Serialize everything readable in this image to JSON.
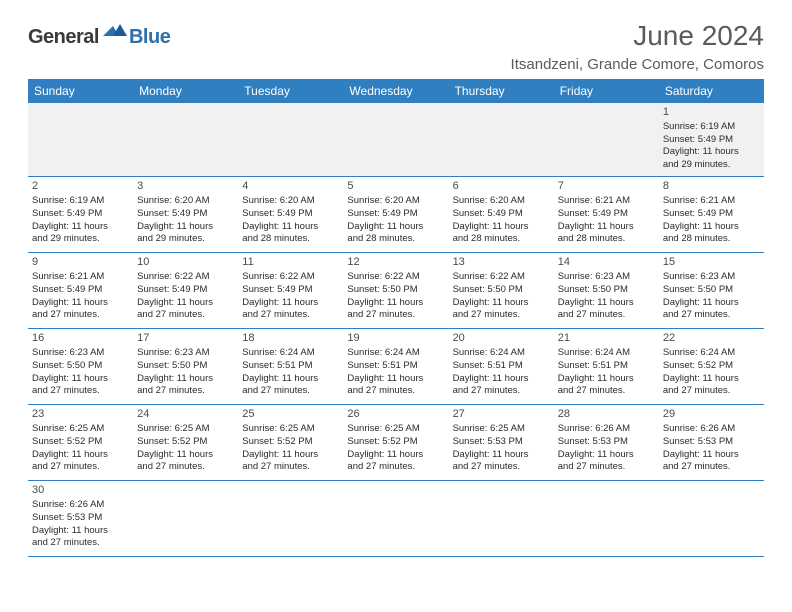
{
  "logo": {
    "part1": "General",
    "part2": "Blue"
  },
  "title": "June 2024",
  "location": "Itsandzeni, Grande Comore, Comoros",
  "theme": {
    "header_bg": "#2f7fc1",
    "header_fg": "#ffffff",
    "row0_bg": "#f1f1f1",
    "rule_color": "#2f7fc1",
    "page_bg": "#ffffff",
    "text_color": "#2b2b2b",
    "title_color": "#5b5b5b",
    "logo_gray": "#3a3a3a",
    "logo_blue": "#2f6fab"
  },
  "columns": [
    "Sunday",
    "Monday",
    "Tuesday",
    "Wednesday",
    "Thursday",
    "Friday",
    "Saturday"
  ],
  "weeks": [
    [
      null,
      null,
      null,
      null,
      null,
      null,
      {
        "n": "1",
        "sr": "Sunrise: 6:19 AM",
        "ss": "Sunset: 5:49 PM",
        "d1": "Daylight: 11 hours",
        "d2": "and 29 minutes."
      }
    ],
    [
      {
        "n": "2",
        "sr": "Sunrise: 6:19 AM",
        "ss": "Sunset: 5:49 PM",
        "d1": "Daylight: 11 hours",
        "d2": "and 29 minutes."
      },
      {
        "n": "3",
        "sr": "Sunrise: 6:20 AM",
        "ss": "Sunset: 5:49 PM",
        "d1": "Daylight: 11 hours",
        "d2": "and 29 minutes."
      },
      {
        "n": "4",
        "sr": "Sunrise: 6:20 AM",
        "ss": "Sunset: 5:49 PM",
        "d1": "Daylight: 11 hours",
        "d2": "and 28 minutes."
      },
      {
        "n": "5",
        "sr": "Sunrise: 6:20 AM",
        "ss": "Sunset: 5:49 PM",
        "d1": "Daylight: 11 hours",
        "d2": "and 28 minutes."
      },
      {
        "n": "6",
        "sr": "Sunrise: 6:20 AM",
        "ss": "Sunset: 5:49 PM",
        "d1": "Daylight: 11 hours",
        "d2": "and 28 minutes."
      },
      {
        "n": "7",
        "sr": "Sunrise: 6:21 AM",
        "ss": "Sunset: 5:49 PM",
        "d1": "Daylight: 11 hours",
        "d2": "and 28 minutes."
      },
      {
        "n": "8",
        "sr": "Sunrise: 6:21 AM",
        "ss": "Sunset: 5:49 PM",
        "d1": "Daylight: 11 hours",
        "d2": "and 28 minutes."
      }
    ],
    [
      {
        "n": "9",
        "sr": "Sunrise: 6:21 AM",
        "ss": "Sunset: 5:49 PM",
        "d1": "Daylight: 11 hours",
        "d2": "and 27 minutes."
      },
      {
        "n": "10",
        "sr": "Sunrise: 6:22 AM",
        "ss": "Sunset: 5:49 PM",
        "d1": "Daylight: 11 hours",
        "d2": "and 27 minutes."
      },
      {
        "n": "11",
        "sr": "Sunrise: 6:22 AM",
        "ss": "Sunset: 5:49 PM",
        "d1": "Daylight: 11 hours",
        "d2": "and 27 minutes."
      },
      {
        "n": "12",
        "sr": "Sunrise: 6:22 AM",
        "ss": "Sunset: 5:50 PM",
        "d1": "Daylight: 11 hours",
        "d2": "and 27 minutes."
      },
      {
        "n": "13",
        "sr": "Sunrise: 6:22 AM",
        "ss": "Sunset: 5:50 PM",
        "d1": "Daylight: 11 hours",
        "d2": "and 27 minutes."
      },
      {
        "n": "14",
        "sr": "Sunrise: 6:23 AM",
        "ss": "Sunset: 5:50 PM",
        "d1": "Daylight: 11 hours",
        "d2": "and 27 minutes."
      },
      {
        "n": "15",
        "sr": "Sunrise: 6:23 AM",
        "ss": "Sunset: 5:50 PM",
        "d1": "Daylight: 11 hours",
        "d2": "and 27 minutes."
      }
    ],
    [
      {
        "n": "16",
        "sr": "Sunrise: 6:23 AM",
        "ss": "Sunset: 5:50 PM",
        "d1": "Daylight: 11 hours",
        "d2": "and 27 minutes."
      },
      {
        "n": "17",
        "sr": "Sunrise: 6:23 AM",
        "ss": "Sunset: 5:50 PM",
        "d1": "Daylight: 11 hours",
        "d2": "and 27 minutes."
      },
      {
        "n": "18",
        "sr": "Sunrise: 6:24 AM",
        "ss": "Sunset: 5:51 PM",
        "d1": "Daylight: 11 hours",
        "d2": "and 27 minutes."
      },
      {
        "n": "19",
        "sr": "Sunrise: 6:24 AM",
        "ss": "Sunset: 5:51 PM",
        "d1": "Daylight: 11 hours",
        "d2": "and 27 minutes."
      },
      {
        "n": "20",
        "sr": "Sunrise: 6:24 AM",
        "ss": "Sunset: 5:51 PM",
        "d1": "Daylight: 11 hours",
        "d2": "and 27 minutes."
      },
      {
        "n": "21",
        "sr": "Sunrise: 6:24 AM",
        "ss": "Sunset: 5:51 PM",
        "d1": "Daylight: 11 hours",
        "d2": "and 27 minutes."
      },
      {
        "n": "22",
        "sr": "Sunrise: 6:24 AM",
        "ss": "Sunset: 5:52 PM",
        "d1": "Daylight: 11 hours",
        "d2": "and 27 minutes."
      }
    ],
    [
      {
        "n": "23",
        "sr": "Sunrise: 6:25 AM",
        "ss": "Sunset: 5:52 PM",
        "d1": "Daylight: 11 hours",
        "d2": "and 27 minutes."
      },
      {
        "n": "24",
        "sr": "Sunrise: 6:25 AM",
        "ss": "Sunset: 5:52 PM",
        "d1": "Daylight: 11 hours",
        "d2": "and 27 minutes."
      },
      {
        "n": "25",
        "sr": "Sunrise: 6:25 AM",
        "ss": "Sunset: 5:52 PM",
        "d1": "Daylight: 11 hours",
        "d2": "and 27 minutes."
      },
      {
        "n": "26",
        "sr": "Sunrise: 6:25 AM",
        "ss": "Sunset: 5:52 PM",
        "d1": "Daylight: 11 hours",
        "d2": "and 27 minutes."
      },
      {
        "n": "27",
        "sr": "Sunrise: 6:25 AM",
        "ss": "Sunset: 5:53 PM",
        "d1": "Daylight: 11 hours",
        "d2": "and 27 minutes."
      },
      {
        "n": "28",
        "sr": "Sunrise: 6:26 AM",
        "ss": "Sunset: 5:53 PM",
        "d1": "Daylight: 11 hours",
        "d2": "and 27 minutes."
      },
      {
        "n": "29",
        "sr": "Sunrise: 6:26 AM",
        "ss": "Sunset: 5:53 PM",
        "d1": "Daylight: 11 hours",
        "d2": "and 27 minutes."
      }
    ],
    [
      {
        "n": "30",
        "sr": "Sunrise: 6:26 AM",
        "ss": "Sunset: 5:53 PM",
        "d1": "Daylight: 11 hours",
        "d2": "and 27 minutes."
      },
      null,
      null,
      null,
      null,
      null,
      null
    ]
  ]
}
